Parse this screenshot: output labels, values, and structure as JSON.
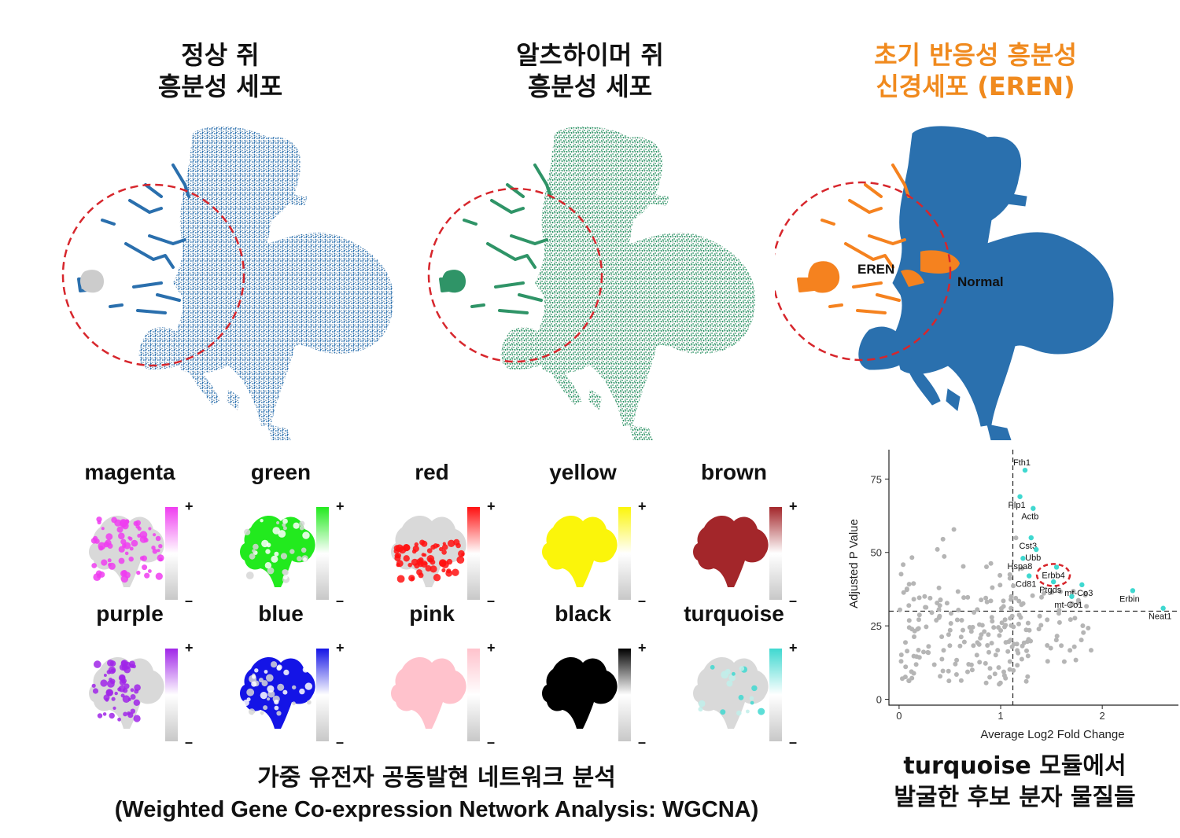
{
  "umaps": [
    {
      "id": "normal",
      "title_line1": "정상 쥐",
      "title_line2": "흥분성 세포",
      "color": "#2a6fad",
      "faint": "#cccccc",
      "style": "normal"
    },
    {
      "id": "ad",
      "title_line1": "알츠하이머 쥐",
      "title_line2": "흥분성 세포",
      "color": "#2f9467",
      "faint": "#bbbbbb",
      "style": "ad"
    },
    {
      "id": "eren",
      "title_line1": "초기 반응성 흥분성",
      "title_line2": "신경세포 (EREN)",
      "color": "#2a70ae",
      "accent": "#f5821f",
      "style": "eren",
      "label_eren": "EREN",
      "label_normal": "Normal"
    }
  ],
  "highlight_circle_color": "#d7262c",
  "modules": [
    {
      "name": "magenta",
      "color": "#ef3df0",
      "pattern": "speckle"
    },
    {
      "name": "green",
      "color": "#22ea1e",
      "pattern": "dense"
    },
    {
      "name": "red",
      "color": "#ff1010",
      "pattern": "bottom"
    },
    {
      "name": "yellow",
      "color": "#fbf50a",
      "pattern": "full"
    },
    {
      "name": "brown",
      "color": "#a3262a",
      "pattern": "full"
    },
    {
      "name": "purple",
      "color": "#a026e8",
      "pattern": "left"
    },
    {
      "name": "blue",
      "color": "#1414e6",
      "pattern": "dense"
    },
    {
      "name": "pink",
      "color": "#ffc2cc",
      "pattern": "full"
    },
    {
      "name": "black",
      "color": "#000000",
      "pattern": "full"
    },
    {
      "name": "turquoise",
      "color": "#3fd8d0",
      "pattern": "sparse"
    }
  ],
  "legend_plus": "+",
  "legend_minus": "–",
  "wgcna_caption_line1": "가중 유전자 공동발현 네트워크 분석",
  "wgcna_caption_line2": "(Weighted Gene Co-expression Network Analysis: WGCNA)",
  "volcano_caption_line1": "turquoise 모듈에서",
  "volcano_caption_line2": "발굴한 후보 분자 물질들",
  "chart_data": {
    "type": "scatter",
    "xlabel": "Average Log2 Fold Change",
    "ylabel": "Adjusted P Value",
    "xlim": [
      -0.1,
      2.75
    ],
    "ylim": [
      -2,
      85
    ],
    "xticks": [
      0,
      1,
      2
    ],
    "yticks": [
      0,
      25,
      50,
      75
    ],
    "vline_x": 1.12,
    "hline_y": 30,
    "highlight_color": "#3fd8d0",
    "labeled_points": [
      {
        "label": "Fth1",
        "x": 1.24,
        "y": 78
      },
      {
        "label": "Plp1",
        "x": 1.19,
        "y": 69
      },
      {
        "label": "Actb",
        "x": 1.32,
        "y": 65
      },
      {
        "label": "Cst3",
        "x": 1.3,
        "y": 55
      },
      {
        "label": "Ubb",
        "x": 1.35,
        "y": 51
      },
      {
        "label": "Hspa8",
        "x": 1.22,
        "y": 48
      },
      {
        "label": "Erbb4",
        "x": 1.55,
        "y": 45
      },
      {
        "label": "Cd81",
        "x": 1.28,
        "y": 42
      },
      {
        "label": "Ptgds",
        "x": 1.52,
        "y": 40
      },
      {
        "label": "mt-Co3",
        "x": 1.8,
        "y": 39
      },
      {
        "label": "mt-Co1",
        "x": 1.7,
        "y": 35
      },
      {
        "label": "Erbin",
        "x": 2.3,
        "y": 37
      },
      {
        "label": "Neat1",
        "x": 2.6,
        "y": 31
      }
    ],
    "circled_label": "Erbb4"
  }
}
